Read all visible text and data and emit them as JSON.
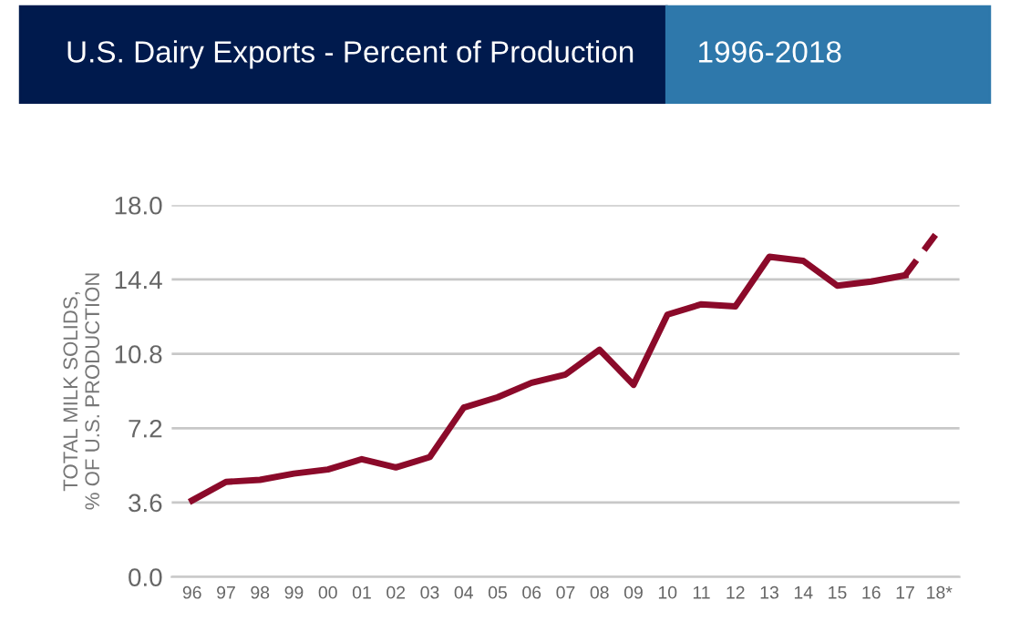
{
  "chart_data": {
    "type": "line",
    "title": "U.S. Dairy Exports - Percent of Production",
    "subtitle": "1996-2018",
    "ylabel": "TOTAL MILK SOLIDS,\n% OF U.S. PRODUCTION",
    "categories": [
      "96",
      "97",
      "98",
      "99",
      "00",
      "01",
      "02",
      "03",
      "04",
      "05",
      "06",
      "07",
      "08",
      "09",
      "10",
      "11",
      "12",
      "13",
      "14",
      "15",
      "16",
      "17",
      "18*"
    ],
    "series": [
      {
        "color": "#8b0a2a",
        "line_style": "solid",
        "values": [
          3.7,
          4.6,
          4.7,
          5.0,
          5.2,
          5.7,
          5.3,
          5.8,
          8.2,
          8.7,
          9.4,
          9.8,
          11.0,
          9.3,
          12.7,
          13.2,
          13.1,
          15.5,
          15.3,
          14.1,
          14.3,
          14.6,
          null
        ]
      },
      {
        "color": "#8b0a2a",
        "line_style": "dashed",
        "values": [
          null,
          null,
          null,
          null,
          null,
          null,
          null,
          null,
          null,
          null,
          null,
          null,
          null,
          null,
          null,
          null,
          null,
          null,
          null,
          null,
          null,
          14.6,
          16.8
        ]
      }
    ],
    "ylim": [
      0,
      18
    ],
    "yticks": [
      {
        "value": 0,
        "label": "0.0"
      },
      {
        "value": 3.6,
        "label": "3.6"
      },
      {
        "value": 7.2,
        "label": "7.2"
      },
      {
        "value": 10.8,
        "label": "10.8"
      },
      {
        "value": 14.4,
        "label": "14.4"
      },
      {
        "value": 18,
        "label": "18.0"
      }
    ],
    "grid": "y",
    "marker": "none",
    "legend": false
  }
}
